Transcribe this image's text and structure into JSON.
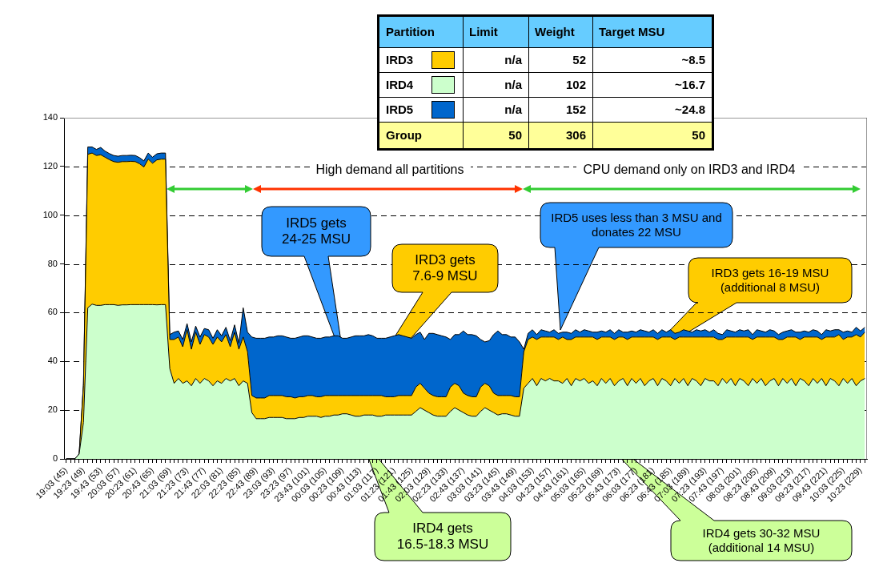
{
  "chart_data": [
    {
      "type": "area",
      "stacked": true,
      "grid": "y",
      "legend": "top",
      "legend_title": "Partition",
      "categories": [
        "19:03 (45)",
        null,
        null,
        null,
        "19:23 (49)",
        null,
        null,
        null,
        "19:43 (53)",
        null,
        null,
        null,
        "20:03 (57)",
        null,
        null,
        null,
        "20:23 (61)",
        null,
        null,
        null,
        "20:43 (65)",
        null,
        null,
        null,
        "21:03 (69)",
        null,
        null,
        null,
        "21:23 (73)",
        null,
        null,
        null,
        "21:43 (77)",
        null,
        null,
        null,
        "22:03 (81)",
        null,
        null,
        null,
        "22:23 (85)",
        null,
        null,
        null,
        "22:43 (89)",
        null,
        null,
        null,
        "23:03 (93)",
        null,
        null,
        null,
        "23:23 (97)",
        null,
        null,
        null,
        "23:43 (101)",
        null,
        null,
        null,
        "00:03 (105)",
        null,
        null,
        null,
        "00:23 (109)",
        null,
        null,
        null,
        "00:43 (113)",
        null,
        null,
        null,
        "01:03 (117)",
        null,
        null,
        null,
        "01:23 (121)",
        null,
        null,
        null,
        "01:43 (125)",
        null,
        null,
        null,
        "02:03 (129)",
        null,
        null,
        null,
        "02:23 (133)",
        null,
        null,
        null,
        "02:43 (137)",
        null,
        null,
        null,
        "03:03 (141)",
        null,
        null,
        null,
        "03:23 (145)",
        null,
        null,
        null,
        "03:43 (149)",
        null,
        null,
        null,
        "04:03 (153)",
        null,
        null,
        null,
        "04:23 (157)",
        null,
        null,
        null,
        "04:43 (161)",
        null,
        null,
        null,
        "05:03 (165)",
        null,
        null,
        null,
        "05:23 (169)",
        null,
        null,
        null,
        "05:43 (173)",
        null,
        null,
        null,
        "06:03 (177)",
        null,
        null,
        null,
        "06:23 (181)",
        null,
        null,
        null,
        "06:43 (185)",
        null,
        null,
        null,
        "07:03 (189)",
        null,
        null,
        null,
        "07:23 (193)",
        null,
        null,
        null,
        "07:43 (197)",
        null,
        null,
        null,
        "08:03 (201)",
        null,
        null,
        null,
        "08:23 (205)",
        null,
        null,
        null,
        "08:43 (209)",
        null,
        null,
        null,
        "09:03 (213)",
        null,
        null,
        null,
        "09:23 (217)",
        null,
        null,
        null,
        "09:43 (221)",
        null,
        null,
        null,
        "10:03 (225)",
        null,
        null,
        null,
        "10:23 (229)",
        null
      ],
      "series": [
        {
          "name": "IRD4",
          "color": "#ccffcc",
          "values": [
            0,
            0,
            0,
            2,
            15,
            62,
            63.5,
            63,
            63,
            63.3,
            63.3,
            63.3,
            63,
            63.2,
            63.2,
            63.3,
            63.3,
            63.3,
            63.3,
            63.3,
            63.3,
            63.2,
            63.3,
            63.3,
            37,
            31,
            33,
            31,
            32,
            30,
            33,
            31,
            33,
            32,
            30,
            32,
            31,
            33,
            32,
            33,
            30,
            32,
            31,
            19,
            16.5,
            16.5,
            16.5,
            17,
            17,
            17,
            17,
            16.5,
            16.5,
            16.5,
            17,
            17,
            17.5,
            17.5,
            17.5,
            17,
            17.5,
            17.5,
            18,
            18,
            18.5,
            18.5,
            18,
            17.5,
            17.5,
            18,
            18,
            18,
            17.5,
            17.5,
            18,
            18,
            18,
            18,
            18,
            18,
            18,
            19.5,
            21,
            20,
            19,
            18,
            17.5,
            17.5,
            17.5,
            19.5,
            21,
            20,
            19,
            18,
            17.5,
            17.5,
            19.5,
            21,
            20,
            19,
            18,
            18.5,
            18.5,
            18,
            17.5,
            17.5,
            29,
            31,
            33,
            30,
            33,
            32,
            33,
            32,
            32,
            31,
            33,
            30,
            33,
            32,
            33,
            31,
            32,
            30,
            33,
            31,
            33,
            30,
            32,
            33,
            30,
            33,
            31,
            33,
            30,
            32,
            33,
            30,
            33,
            32,
            30,
            33,
            31,
            33,
            30,
            33,
            32,
            30,
            33,
            32,
            32,
            30,
            33,
            31,
            33,
            30,
            33,
            32,
            30,
            33,
            31,
            33,
            30,
            32,
            33,
            30,
            33,
            31,
            33,
            30,
            33,
            32,
            30,
            33,
            31,
            33,
            30,
            33,
            32,
            30,
            33,
            31,
            33,
            30,
            32,
            33
          ]
        },
        {
          "name": "IRD3",
          "color": "#ffcc00",
          "values": [
            0,
            0,
            0,
            0,
            15,
            63,
            62,
            61.5,
            61.8,
            60.5,
            59.5,
            58.7,
            58.7,
            58.8,
            58.8,
            58.8,
            58.7,
            57.8,
            56.5,
            59.7,
            58,
            59.5,
            59.7,
            59.7,
            12,
            18,
            17,
            15,
            21,
            15,
            19,
            16,
            18,
            18,
            17,
            18,
            17,
            18,
            14,
            19,
            15,
            18,
            13,
            7,
            8.5,
            8.5,
            8.5,
            9,
            9,
            9,
            9,
            9,
            9,
            8.5,
            8.5,
            8.5,
            8.5,
            8.5,
            8,
            8.5,
            8.5,
            8.5,
            8,
            8,
            7.5,
            7.5,
            8,
            8.5,
            8.5,
            8,
            8,
            8,
            8.5,
            8.5,
            7.5,
            7.5,
            7.5,
            8,
            8,
            8,
            8,
            10,
            10,
            9,
            8,
            8,
            8,
            8,
            8,
            10,
            10,
            10,
            8,
            8,
            8,
            8,
            10,
            10,
            10,
            8,
            8,
            7.5,
            7.5,
            8,
            8,
            8,
            15,
            18,
            17,
            19,
            17,
            18,
            17,
            18,
            17,
            19,
            16,
            19,
            17,
            18,
            17,
            19,
            18,
            19,
            17,
            19,
            17,
            19,
            18,
            17,
            19,
            17,
            19,
            17,
            20,
            18,
            17,
            19,
            17,
            18,
            20,
            16,
            19,
            17,
            20,
            17,
            18,
            20,
            17,
            18,
            18,
            19,
            16,
            19,
            17,
            20,
            17,
            18,
            20,
            16,
            19,
            17,
            20,
            18,
            17,
            19,
            16,
            19,
            17,
            20,
            16,
            18,
            20,
            17,
            19,
            16,
            20,
            17,
            18,
            21,
            16,
            19,
            17,
            21,
            18,
            19
          ]
        },
        {
          "name": "IRD5",
          "color": "#0066cc",
          "values": [
            0,
            0,
            0,
            0,
            1,
            3,
            2.5,
            2.5,
            3,
            2.5,
            2.5,
            2.5,
            2.5,
            2.5,
            2.5,
            2.5,
            2.5,
            2.5,
            2.5,
            2.5,
            2.5,
            2.5,
            2.5,
            2.5,
            2,
            3,
            2.5,
            3,
            2.5,
            3,
            2.5,
            3,
            2.5,
            3,
            2.5,
            3,
            2.5,
            3,
            2.5,
            3,
            2.5,
            12,
            8,
            24,
            24.5,
            24.5,
            24.5,
            24,
            24,
            24.5,
            24.5,
            24.5,
            24,
            24.5,
            24.5,
            25,
            24.5,
            24,
            24,
            24,
            24,
            24,
            24.5,
            24.5,
            23.5,
            23.5,
            24,
            24.5,
            24.5,
            24.5,
            25,
            24.5,
            23.5,
            23.5,
            24,
            24.5,
            25,
            25,
            24.5,
            24,
            23.5,
            21.5,
            21,
            20,
            24.5,
            25.5,
            25.5,
            25,
            24.5,
            19.5,
            20,
            21,
            25.5,
            25,
            25.5,
            25,
            19.5,
            17,
            18.5,
            24,
            26.5,
            25,
            25,
            24,
            24.5,
            22.5,
            1,
            2.5,
            3,
            2,
            3,
            2.5,
            2,
            3,
            2.5,
            2,
            3,
            2.5,
            3,
            2,
            3,
            2.5,
            2,
            3,
            2.5,
            2,
            3,
            2.5,
            3,
            2,
            3,
            2.5,
            2,
            3,
            2.5,
            2,
            3,
            2.5,
            3,
            2,
            3,
            2.5,
            2,
            3,
            2.5,
            2,
            3,
            2.5,
            3,
            2,
            3,
            2.5,
            2,
            3,
            2.5,
            2,
            3,
            2.5,
            3,
            2,
            3,
            2.5,
            2,
            3,
            2.5,
            2,
            3,
            2.5,
            3,
            2,
            3,
            2.5,
            2,
            3,
            2.5,
            2,
            3,
            2.5,
            3,
            2,
            3,
            2.5,
            2,
            3,
            2.5,
            2
          ]
        }
      ],
      "ylim": [
        0,
        140
      ],
      "yticks": [
        0,
        20,
        40,
        60,
        80,
        100,
        120,
        140
      ],
      "annotations": [
        "High demand all partitions",
        "CPU demand only on IRD3 and IRD4",
        "IRD5 gets 24-25 MSU",
        "IRD3 gets 7.6-9 MSU",
        "IRD4 gets 16.5-18.3 MSU",
        "IRD5 uses less than 3 MSU and donates 22 MSU",
        "IRD3 gets 16-19 MSU (additional 8 MSU)",
        "IRD4 gets 30-32 MSU (additional 14 MSU)"
      ]
    },
    {
      "type": "other",
      "categories": [
        "Limit",
        "Weight",
        "Target MSU"
      ],
      "y_categories": [
        null,
        null,
        null,
        "Group"
      ],
      "cell_labels": [
        [
          "n/a",
          "52",
          "~8.5"
        ],
        [
          "n/a",
          "102",
          "~16.7"
        ],
        [
          "n/a",
          "152",
          "~24.8"
        ],
        [
          "50",
          "306",
          "50"
        ]
      ]
    }
  ]
}
